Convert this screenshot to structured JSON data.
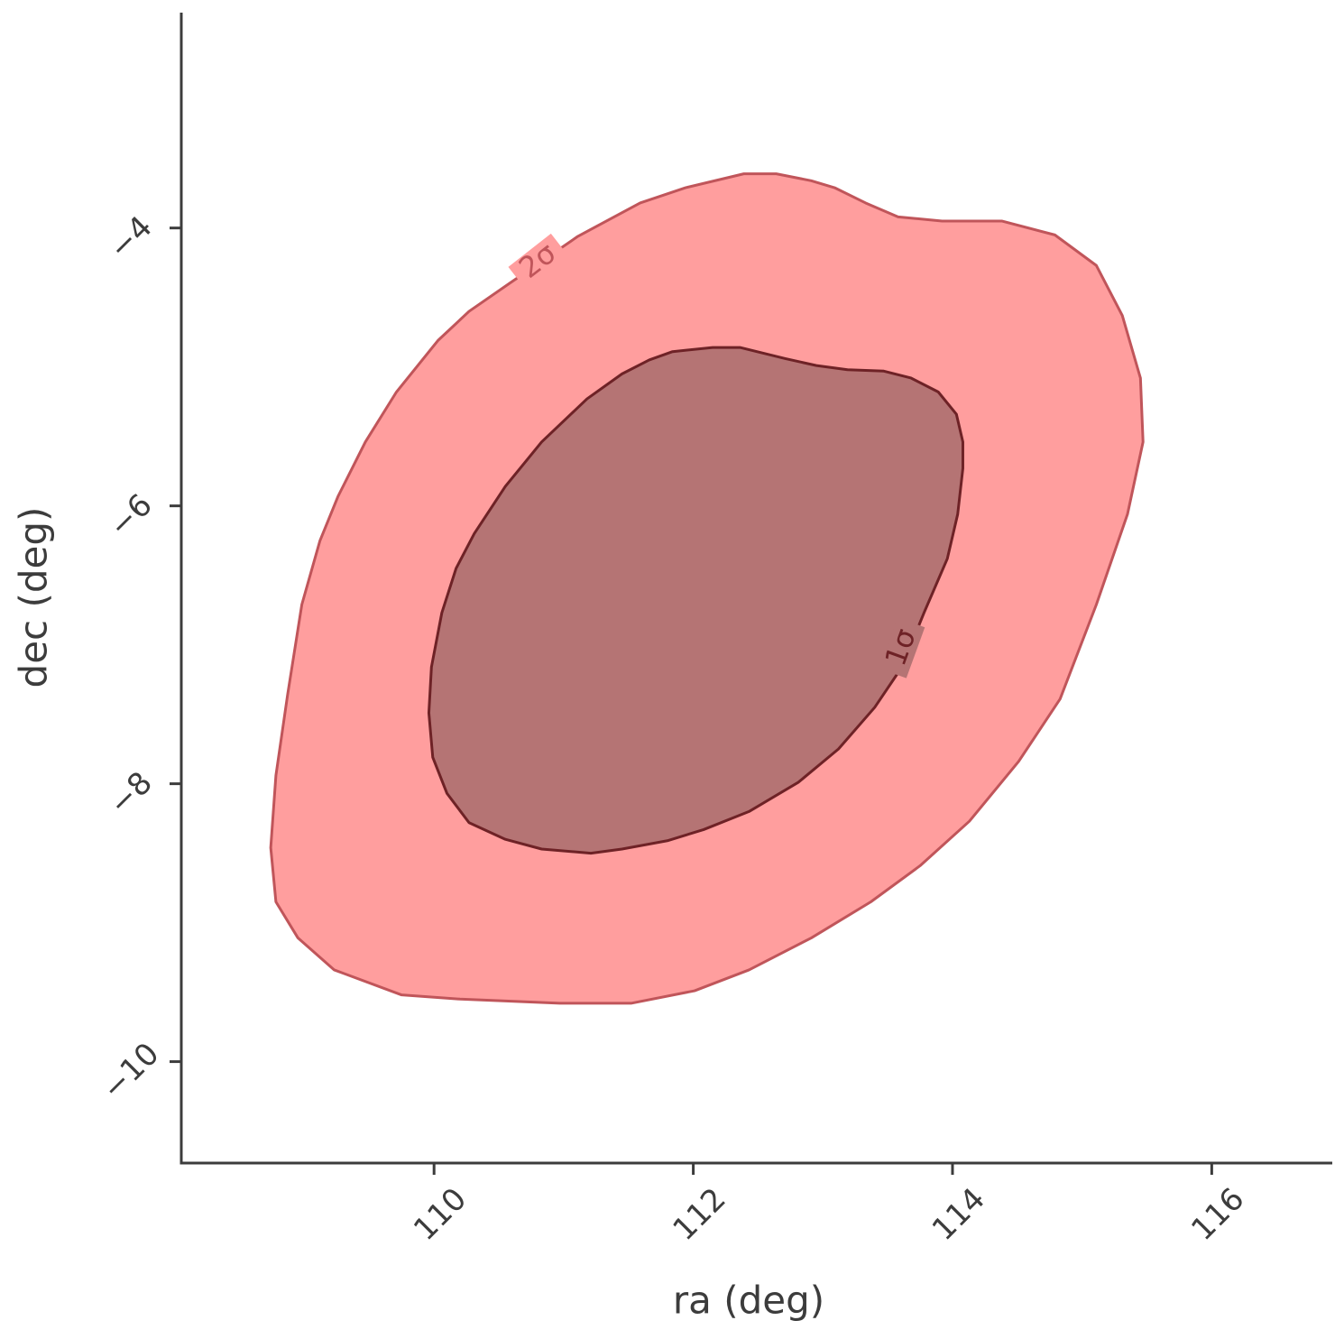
{
  "chart_data": {
    "type": "contour",
    "x_label": "ra (deg)",
    "y_label": "dec (deg)",
    "xlim": [
      108.05,
      116.93
    ],
    "ylim": [
      -10.73,
      -2.45
    ],
    "xticks": [
      110,
      112,
      114,
      116
    ],
    "yticks": [
      {
        "value": -4,
        "label": "−4"
      },
      {
        "value": -6,
        "label": "−6"
      },
      {
        "value": -8,
        "label": "−8"
      },
      {
        "value": -10,
        "label": "−10"
      }
    ],
    "series": [
      {
        "label": "2σ",
        "color": "#ff9e9e",
        "edge_color": "#c0555a",
        "x": [
          110.03,
          109.71,
          109.47,
          109.26,
          109.12,
          108.98,
          108.87,
          108.78,
          108.74,
          108.78,
          108.95,
          109.23,
          109.75,
          110.2,
          110.97,
          111.52,
          112.01,
          112.43,
          112.91,
          113.37,
          113.75,
          114.13,
          114.51,
          114.83,
          115.11,
          115.35,
          115.47,
          115.45,
          115.31,
          115.11,
          114.79,
          114.38,
          113.92,
          113.58,
          113.33,
          113.09,
          112.91,
          112.64,
          112.39,
          111.94,
          111.59,
          111.11,
          110.58,
          110.27
        ],
        "y": [
          -4.81,
          -5.18,
          -5.54,
          -5.93,
          -6.25,
          -6.71,
          -7.36,
          -7.94,
          -8.46,
          -8.85,
          -9.11,
          -9.34,
          -9.52,
          -9.55,
          -9.58,
          -9.58,
          -9.49,
          -9.34,
          -9.11,
          -8.85,
          -8.59,
          -8.27,
          -7.84,
          -7.39,
          -6.71,
          -6.06,
          -5.54,
          -5.08,
          -4.63,
          -4.27,
          -4.05,
          -3.95,
          -3.95,
          -3.92,
          -3.82,
          -3.71,
          -3.66,
          -3.61,
          -3.61,
          -3.71,
          -3.82,
          -4.06,
          -4.4,
          -4.6
        ]
      },
      {
        "label": "1σ",
        "color": "#b57474",
        "edge_color": "#6e2226",
        "x": [
          110.06,
          109.98,
          109.96,
          109.99,
          110.1,
          110.27,
          110.55,
          110.83,
          111.21,
          111.45,
          111.8,
          112.08,
          112.43,
          112.81,
          113.12,
          113.4,
          113.61,
          113.78,
          113.96,
          114.04,
          114.08,
          114.08,
          114.03,
          113.89,
          113.68,
          113.47,
          113.19,
          112.95,
          112.71,
          112.36,
          112.15,
          111.84,
          111.66,
          111.45,
          111.18,
          110.83,
          110.55,
          110.31,
          110.17
        ],
        "y": [
          -6.77,
          -7.16,
          -7.49,
          -7.81,
          -8.07,
          -8.28,
          -8.4,
          -8.47,
          -8.5,
          -8.47,
          -8.41,
          -8.33,
          -8.2,
          -7.99,
          -7.75,
          -7.45,
          -7.16,
          -6.77,
          -6.38,
          -6.06,
          -5.73,
          -5.54,
          -5.34,
          -5.18,
          -5.08,
          -5.03,
          -5.02,
          -4.99,
          -4.94,
          -4.86,
          -4.86,
          -4.89,
          -4.95,
          -5.05,
          -5.23,
          -5.54,
          -5.86,
          -6.2,
          -6.45
        ]
      }
    ]
  }
}
